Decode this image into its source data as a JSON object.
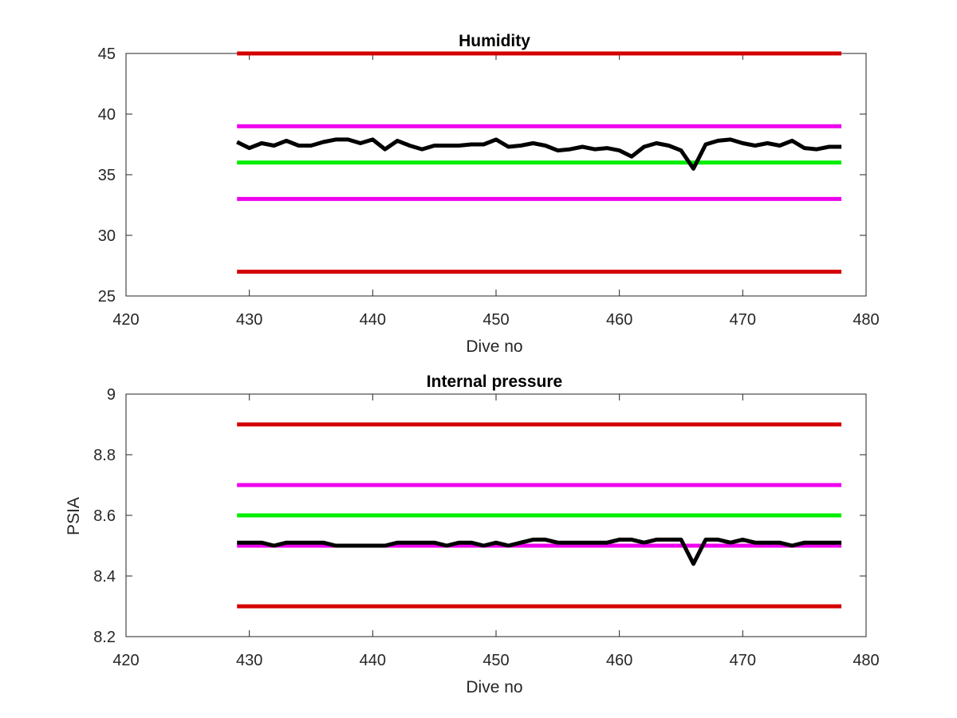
{
  "chart_data": [
    {
      "type": "line",
      "title": "Humidity",
      "xlabel": "Dive no",
      "ylabel": "",
      "xlim": [
        420,
        480
      ],
      "ylim": [
        25,
        45
      ],
      "xticks": [
        420,
        430,
        440,
        450,
        460,
        470,
        480
      ],
      "yticks": [
        25,
        30,
        35,
        40,
        45
      ],
      "grid": false,
      "reference_lines": [
        {
          "y": 45,
          "x": [
            429,
            478
          ],
          "color": "#d40000"
        },
        {
          "y": 39,
          "x": [
            429,
            478
          ],
          "color": "#ee00ee"
        },
        {
          "y": 36,
          "x": [
            429,
            478
          ],
          "color": "#00ee00"
        },
        {
          "y": 33,
          "x": [
            429,
            478
          ],
          "color": "#ee00ee"
        },
        {
          "y": 27,
          "x": [
            429,
            478
          ],
          "color": "#d40000"
        }
      ],
      "series": [
        {
          "color": "#000000",
          "x": [
            429,
            430,
            431,
            432,
            433,
            434,
            435,
            436,
            437,
            438,
            439,
            440,
            441,
            442,
            443,
            444,
            445,
            446,
            447,
            448,
            449,
            450,
            451,
            452,
            453,
            454,
            455,
            456,
            457,
            458,
            459,
            460,
            461,
            462,
            463,
            464,
            465,
            466,
            467,
            468,
            469,
            470,
            471,
            472,
            473,
            474,
            475,
            476,
            477,
            478
          ],
          "y": [
            37.7,
            37.2,
            37.6,
            37.4,
            37.8,
            37.4,
            37.4,
            37.7,
            37.9,
            37.9,
            37.6,
            37.9,
            37.1,
            37.8,
            37.4,
            37.1,
            37.4,
            37.4,
            37.4,
            37.5,
            37.5,
            37.9,
            37.3,
            37.4,
            37.6,
            37.4,
            37.0,
            37.1,
            37.3,
            37.1,
            37.2,
            37.0,
            36.5,
            37.3,
            37.6,
            37.4,
            37.0,
            35.5,
            37.5,
            37.8,
            37.9,
            37.6,
            37.4,
            37.6,
            37.4,
            37.8,
            37.2,
            37.1,
            37.3,
            37.3
          ]
        }
      ]
    },
    {
      "type": "line",
      "title": "Internal pressure",
      "xlabel": "Dive no",
      "ylabel": "PSIA",
      "xlim": [
        420,
        480
      ],
      "ylim": [
        8.2,
        9
      ],
      "xticks": [
        420,
        430,
        440,
        450,
        460,
        470,
        480
      ],
      "yticks": [
        8.2,
        8.4,
        8.6,
        8.8,
        9
      ],
      "ytick_labels": [
        "8.2",
        "8.4",
        "8.6",
        "8.8",
        "9"
      ],
      "grid": false,
      "reference_lines": [
        {
          "y": 8.9,
          "x": [
            429,
            478
          ],
          "color": "#d40000"
        },
        {
          "y": 8.7,
          "x": [
            429,
            478
          ],
          "color": "#ee00ee"
        },
        {
          "y": 8.6,
          "x": [
            429,
            478
          ],
          "color": "#00ee00"
        },
        {
          "y": 8.5,
          "x": [
            429,
            478
          ],
          "color": "#ee00ee"
        },
        {
          "y": 8.3,
          "x": [
            429,
            478
          ],
          "color": "#d40000"
        }
      ],
      "series": [
        {
          "color": "#000000",
          "x": [
            429,
            430,
            431,
            432,
            433,
            434,
            435,
            436,
            437,
            438,
            439,
            440,
            441,
            442,
            443,
            444,
            445,
            446,
            447,
            448,
            449,
            450,
            451,
            452,
            453,
            454,
            455,
            456,
            457,
            458,
            459,
            460,
            461,
            462,
            463,
            464,
            465,
            466,
            467,
            468,
            469,
            470,
            471,
            472,
            473,
            474,
            475,
            476,
            477,
            478
          ],
          "y": [
            8.51,
            8.51,
            8.51,
            8.5,
            8.51,
            8.51,
            8.51,
            8.51,
            8.5,
            8.5,
            8.5,
            8.5,
            8.5,
            8.51,
            8.51,
            8.51,
            8.51,
            8.5,
            8.51,
            8.51,
            8.5,
            8.51,
            8.5,
            8.51,
            8.52,
            8.52,
            8.51,
            8.51,
            8.51,
            8.51,
            8.51,
            8.52,
            8.52,
            8.51,
            8.52,
            8.52,
            8.52,
            8.44,
            8.52,
            8.52,
            8.51,
            8.52,
            8.51,
            8.51,
            8.51,
            8.5,
            8.51,
            8.51,
            8.51,
            8.51
          ]
        }
      ]
    }
  ]
}
